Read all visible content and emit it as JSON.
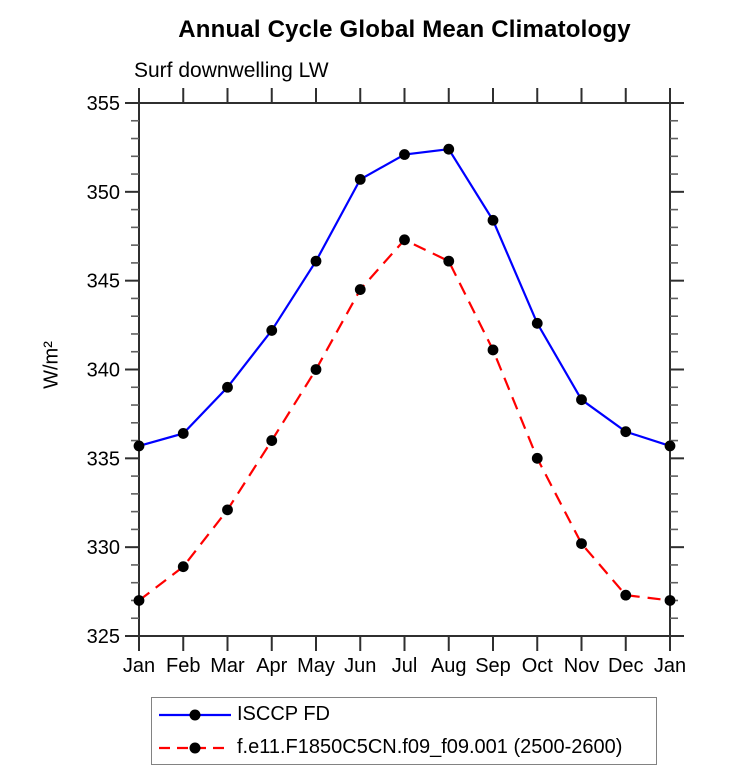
{
  "chart_data": {
    "type": "line",
    "title": "Annual Cycle Global Mean Climatology",
    "subtitle": "Surf downwelling LW",
    "ylabel": "W/m²",
    "categories": [
      "Jan",
      "Feb",
      "Mar",
      "Apr",
      "May",
      "Jun",
      "Jul",
      "Aug",
      "Sep",
      "Oct",
      "Nov",
      "Dec",
      "Jan"
    ],
    "ylim": [
      325,
      355
    ],
    "ytick_major_step": 5,
    "ytick_minor_step": 1,
    "grid": false,
    "legend_position": "bottom",
    "axis_color": "#2f2f2f",
    "marker_color": "#000000",
    "series": [
      {
        "name": "ISCCP FD",
        "color": "#0000ff",
        "style": "solid",
        "marker": "circle",
        "values": [
          335.7,
          336.4,
          339.0,
          342.2,
          346.1,
          350.7,
          352.1,
          352.4,
          348.4,
          342.6,
          338.3,
          336.5,
          335.7
        ]
      },
      {
        "name": "f.e11.F1850C5CN.f09_f09.001 (2500-2600)",
        "color": "#ff0000",
        "style": "dashed",
        "marker": "circle",
        "values": [
          327.0,
          328.9,
          332.1,
          336.0,
          340.0,
          344.5,
          347.3,
          346.1,
          341.1,
          335.0,
          330.2,
          327.3,
          327.0
        ]
      }
    ]
  }
}
